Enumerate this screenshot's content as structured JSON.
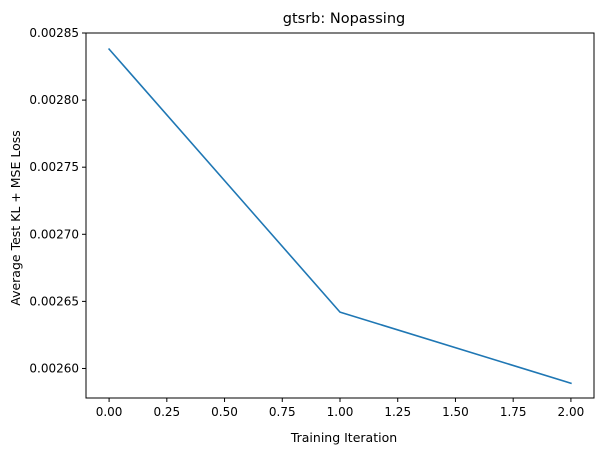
{
  "chart_data": {
    "type": "line",
    "title": "gtsrb: Nopassing",
    "xlabel": "Training Iteration",
    "ylabel": "Average Test KL + MSE Loss",
    "xlim": [
      -0.1,
      2.1
    ],
    "ylim": [
      0.002578,
      0.00285
    ],
    "xticks": [
      0.0,
      0.25,
      0.5,
      0.75,
      1.0,
      1.25,
      1.5,
      1.75,
      2.0
    ],
    "xtick_labels": [
      "0.00",
      "0.25",
      "0.50",
      "0.75",
      "1.00",
      "1.25",
      "1.50",
      "1.75",
      "2.00"
    ],
    "yticks": [
      0.0026,
      0.00265,
      0.0027,
      0.00275,
      0.0028,
      0.00285
    ],
    "ytick_labels": [
      "0.00260",
      "0.00265",
      "0.00270",
      "0.00275",
      "0.00280",
      "0.00285"
    ],
    "grid": false,
    "series": [
      {
        "color": "#1f77b4",
        "x": [
          0,
          1,
          2
        ],
        "y": [
          0.002838,
          0.002642,
          0.002589
        ]
      }
    ]
  }
}
